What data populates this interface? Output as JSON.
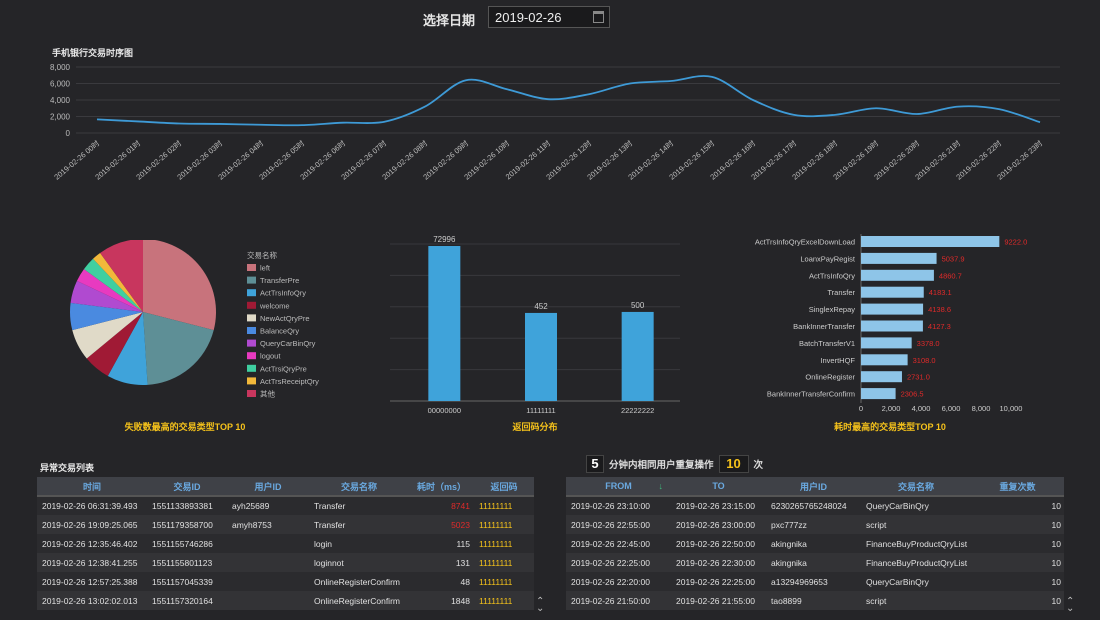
{
  "header": {
    "date_label": "选择日期",
    "date_value": "2019-02-26"
  },
  "line_chart": {
    "title": "手机银行交易时序图",
    "chart_data": {
      "type": "line",
      "title": "手机银行交易时序图",
      "categories": [
        "2019-02-26 00时",
        "2019-02-26 01时",
        "2019-02-26 02时",
        "2019-02-26 03时",
        "2019-02-26 04时",
        "2019-02-26 05时",
        "2019-02-26 06时",
        "2019-02-26 07时",
        "2019-02-26 08时",
        "2019-02-26 09时",
        "2019-02-26 10时",
        "2019-02-26 11时",
        "2019-02-26 12时",
        "2019-02-26 13时",
        "2019-02-26 14时",
        "2019-02-26 15时",
        "2019-02-26 16时",
        "2019-02-26 17时",
        "2019-02-26 18时",
        "2019-02-26 19时",
        "2019-02-26 20时",
        "2019-02-26 21时",
        "2019-02-26 22时",
        "2019-02-26 23时"
      ],
      "values": [
        1650,
        1400,
        1150,
        1100,
        1000,
        950,
        1250,
        1350,
        3200,
        6400,
        5300,
        4100,
        4700,
        6000,
        6300,
        6800,
        4000,
        2200,
        2200,
        3000,
        2300,
        3200,
        2900,
        1300
      ],
      "yticks": [
        "8,000",
        "6,000",
        "4,000",
        "2,000",
        "0"
      ],
      "ylim": [
        0,
        8000
      ],
      "color": "#3e9ad6"
    }
  },
  "pie_chart": {
    "caption": "失败数最高的交易类型TOP 10",
    "legend_title": "交易名称",
    "chart_data": {
      "type": "pie",
      "labels": [
        "left",
        "TransferPre",
        "ActTrsInfoQry",
        "welcome",
        "NewActQryPre",
        "BalanceQry",
        "QueryCarBinQry",
        "logout",
        "ActTrsiQryPre",
        "ActTrsReceiptQry",
        "其他"
      ],
      "values": [
        29,
        20,
        9,
        6,
        7,
        6,
        5,
        3,
        3,
        2,
        10
      ],
      "colors": [
        "#c8737c",
        "#5e8f96",
        "#3fa3da",
        "#a01a35",
        "#e0dac8",
        "#4a8ae0",
        "#b04ad0",
        "#e83ac0",
        "#3fcfa0",
        "#f2b83a",
        "#c8365e"
      ]
    }
  },
  "bar_chart": {
    "caption": "返回码分布",
    "chart_data": {
      "type": "bar",
      "categories": [
        "00000000",
        "11111111",
        "22222222"
      ],
      "values": [
        72996,
        452,
        500
      ],
      "labels": [
        "72996",
        "452",
        "500"
      ],
      "color": "#3fa3da"
    }
  },
  "hbar_chart": {
    "caption": "耗时最高的交易类型TOP 10",
    "chart_data": {
      "type": "bar",
      "orientation": "horizontal",
      "categories": [
        "ActTrsInfoQryExcelDownLoad",
        "LoanxPayRegist",
        "ActTrsInfoQry",
        "Transfer",
        "SinglexRepay",
        "BankInnerTransfer",
        "BatchTransferV1",
        "InvertHQF",
        "OnlineRegister",
        "BankInnerTransferConfirm"
      ],
      "values": [
        9222.0,
        5037.9,
        4860.7,
        4183.1,
        4138.6,
        4127.3,
        3378.0,
        3108.0,
        2731.0,
        2306.5
      ],
      "labels": [
        "9222.0",
        "5037.9",
        "4860.7",
        "4183.1",
        "4138.6",
        "4127.3",
        "3378.0",
        "3108.0",
        "2731.0",
        "2306.5"
      ],
      "xticks": [
        "0",
        "2,000",
        "4,000",
        "6,000",
        "8,000",
        "10,000"
      ],
      "xlim": [
        0,
        10000
      ],
      "color": "#8ec5e8"
    }
  },
  "anomaly_table": {
    "title": "异常交易列表",
    "headers": [
      "时间",
      "交易ID",
      "用户ID",
      "交易名称",
      "耗时（ms）",
      "返回码"
    ],
    "rows": [
      {
        "time": "2019-02-26 06:31:39.493",
        "txid": "1551133893381",
        "uid": "ayh25689",
        "name": "Transfer",
        "cost": "8741",
        "code": "11111111",
        "cost_red": true
      },
      {
        "time": "2019-02-26 19:09:25.065",
        "txid": "1551179358700",
        "uid": "amyh8753",
        "name": "Transfer",
        "cost": "5023",
        "code": "11111111",
        "cost_red": true
      },
      {
        "time": "2019-02-26 12:35:46.402",
        "txid": "1551155746286",
        "uid": "",
        "name": "login",
        "cost": "115",
        "code": "11111111",
        "cost_red": false
      },
      {
        "time": "2019-02-26 12:38:41.255",
        "txid": "1551155801123",
        "uid": "",
        "name": "loginnot",
        "cost": "131",
        "code": "11111111",
        "cost_red": false
      },
      {
        "time": "2019-02-26 12:57:25.388",
        "txid": "1551157045339",
        "uid": "",
        "name": "OnlineRegisterConfirm",
        "cost": "48",
        "code": "11111111",
        "cost_red": false
      },
      {
        "time": "2019-02-26 13:02:02.013",
        "txid": "1551157320164",
        "uid": "",
        "name": "OnlineRegisterConfirm",
        "cost": "1848",
        "code": "11111111",
        "cost_red": false
      }
    ]
  },
  "repeat_ops": {
    "minutes": "5",
    "text": "分钟内相同用户重复操作",
    "count": "10",
    "unit": "次",
    "headers": [
      "FROM",
      "TO",
      "用户ID",
      "交易名称",
      "重复次数"
    ],
    "sort_arrow": "↓",
    "rows": [
      {
        "from": "2019-02-26 23:10:00",
        "to": "2019-02-26 23:15:00",
        "uid": "6230265765248024",
        "name": "QueryCarBinQry",
        "count": "10"
      },
      {
        "from": "2019-02-26 22:55:00",
        "to": "2019-02-26 23:00:00",
        "uid": "pxc777zz",
        "name": "script",
        "count": "10"
      },
      {
        "from": "2019-02-26 22:45:00",
        "to": "2019-02-26 22:50:00",
        "uid": "akingnika",
        "name": "FinanceBuyProductQryList",
        "count": "10"
      },
      {
        "from": "2019-02-26 22:25:00",
        "to": "2019-02-26 22:30:00",
        "uid": "akingnika",
        "name": "FinanceBuyProductQryList",
        "count": "10"
      },
      {
        "from": "2019-02-26 22:20:00",
        "to": "2019-02-26 22:25:00",
        "uid": "a13294969653",
        "name": "QueryCarBinQry",
        "count": "10"
      },
      {
        "from": "2019-02-26 21:50:00",
        "to": "2019-02-26 21:55:00",
        "uid": "tao8899",
        "name": "script",
        "count": "10"
      }
    ]
  },
  "icons": {
    "calendar": "calendar-icon",
    "scroll": "scroll-updown-icon",
    "sort": "sort-down-icon"
  }
}
